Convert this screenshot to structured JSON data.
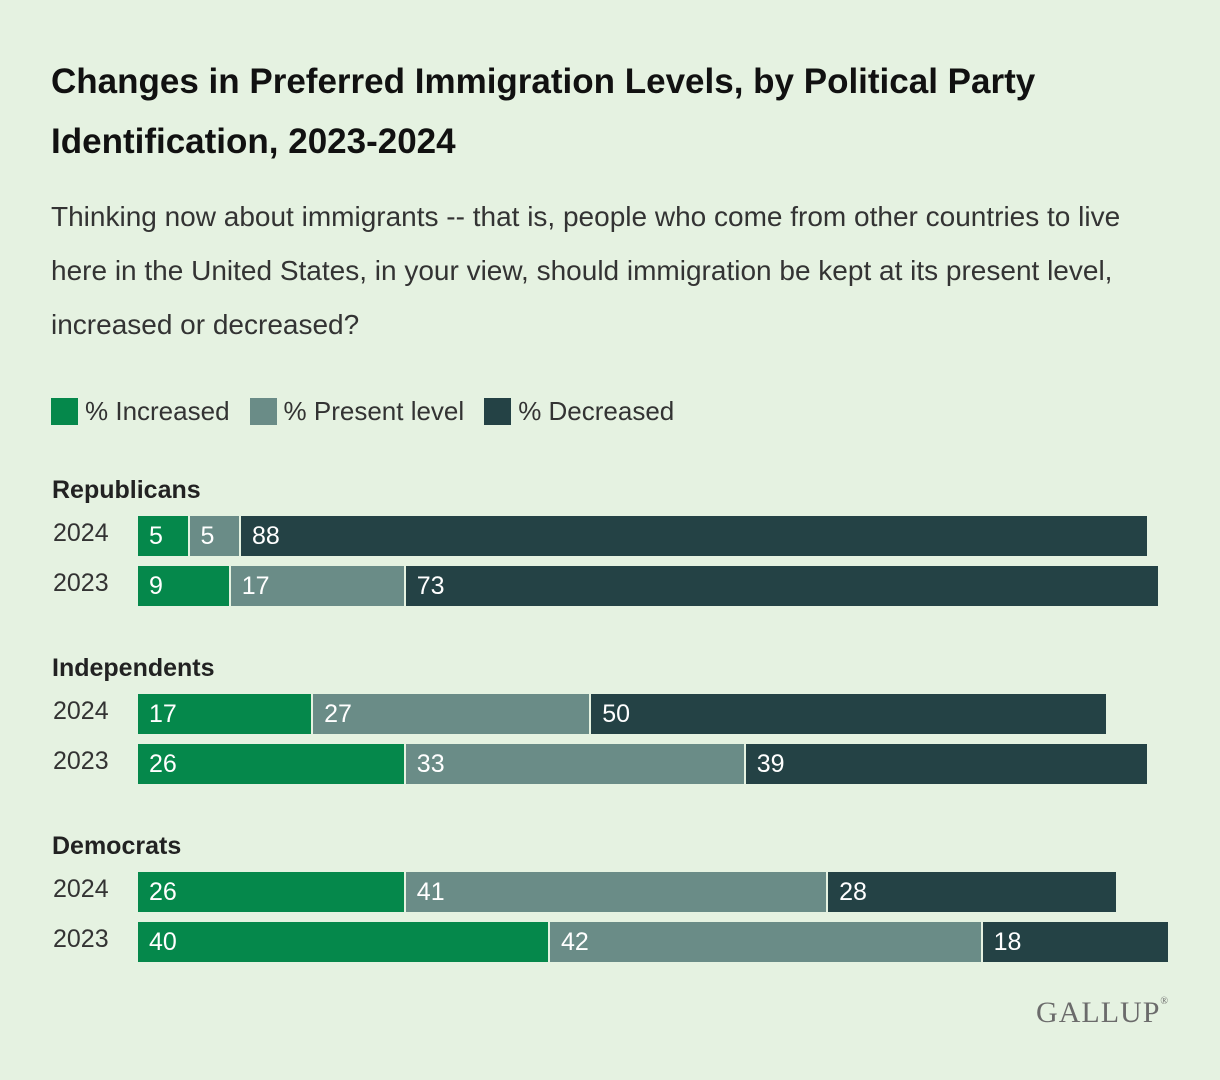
{
  "title": "Changes in Preferred Immigration Levels, by Political Party Identification, 2023-2024",
  "subtitle": "Thinking now about immigrants -- that is, people who come from other countries to live here in the United States, in your view, should immigration be kept at its present level, increased or decreased?",
  "source_logo": "GALLUP",
  "colors": {
    "increased": "#05884b",
    "present": "#6a8c87",
    "decreased": "#244245",
    "background": "#e5f2e1"
  },
  "chart_data": {
    "type": "bar",
    "orientation": "horizontal",
    "stacked": true,
    "legend": [
      {
        "key": "increased",
        "label": "% Increased"
      },
      {
        "key": "present",
        "label": "% Present level"
      },
      {
        "key": "decreased",
        "label": "% Decreased"
      }
    ],
    "legend_position": "top-left",
    "xlim": [
      0,
      100
    ],
    "groups": [
      {
        "label": "Republicans",
        "rows": [
          {
            "year": "2024",
            "increased": 5,
            "present": 5,
            "decreased": 88
          },
          {
            "year": "2023",
            "increased": 9,
            "present": 17,
            "decreased": 73
          }
        ]
      },
      {
        "label": "Independents",
        "rows": [
          {
            "year": "2024",
            "increased": 17,
            "present": 27,
            "decreased": 50
          },
          {
            "year": "2023",
            "increased": 26,
            "present": 33,
            "decreased": 39
          }
        ]
      },
      {
        "label": "Democrats",
        "rows": [
          {
            "year": "2024",
            "increased": 26,
            "present": 41,
            "decreased": 28
          },
          {
            "year": "2023",
            "increased": 40,
            "present": 42,
            "decreased": 18
          }
        ]
      }
    ]
  }
}
